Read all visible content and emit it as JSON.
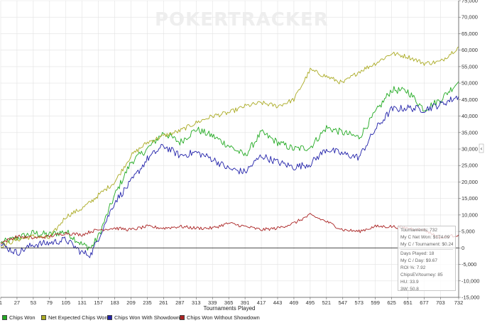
{
  "watermark": "POKERTRACKER",
  "chart_data": {
    "type": "line",
    "xlabel": "Tournaments Played",
    "ylabel": "",
    "xlim": [
      1,
      732
    ],
    "ylim": [
      -15000,
      75000
    ],
    "x_ticks": [
      "1",
      "27",
      "53",
      "79",
      "105",
      "131",
      "157",
      "183",
      "209",
      "235",
      "261",
      "287",
      "313",
      "339",
      "365",
      "391",
      "417",
      "443",
      "469",
      "495",
      "521",
      "547",
      "573",
      "599",
      "625",
      "651",
      "677",
      "703",
      "732"
    ],
    "y_ticks": [
      "75,000",
      "70,000",
      "65,000",
      "60,000",
      "55,000",
      "50,000",
      "45,000",
      "40,000",
      "35,000",
      "30,000",
      "25,000",
      "20,000",
      "15,000",
      "10,000",
      "5,000",
      "0",
      "-5,000",
      "-10,000",
      "-15,000"
    ],
    "grid": true,
    "legend_position": "bottom",
    "x": [
      1,
      27,
      53,
      79,
      105,
      131,
      145,
      157,
      183,
      209,
      235,
      261,
      287,
      313,
      339,
      365,
      391,
      417,
      443,
      469,
      495,
      521,
      547,
      573,
      599,
      625,
      651,
      677,
      703,
      732
    ],
    "series": [
      {
        "name": "Chips Won",
        "color": "#22aa22",
        "values": [
          1500,
          3000,
          4500,
          4000,
          5000,
          1000,
          0,
          3500,
          16000,
          26000,
          30000,
          35000,
          32000,
          36000,
          34000,
          31000,
          28000,
          35000,
          32000,
          30000,
          30500,
          36500,
          35000,
          33500,
          41000,
          48000,
          47500,
          42000,
          45000,
          50500
        ]
      },
      {
        "name": "Net Expected Chips Won",
        "color": "#aaaa22",
        "values": [
          500,
          2500,
          3500,
          3000,
          9500,
          12000,
          14000,
          16000,
          20000,
          28000,
          32000,
          34000,
          35500,
          38000,
          40000,
          41000,
          43000,
          44000,
          43000,
          45000,
          54000,
          52000,
          50000,
          53500,
          56000,
          59000,
          58000,
          56000,
          56500,
          61000
        ]
      },
      {
        "name": "Chips Won With Showdown",
        "color": "#2222aa",
        "values": [
          1000,
          -1500,
          1000,
          1500,
          2500,
          -1500,
          -2000,
          3000,
          14000,
          20000,
          27000,
          31000,
          28000,
          29000,
          27000,
          24000,
          23000,
          28000,
          26000,
          24500,
          25500,
          30000,
          28500,
          27500,
          36000,
          42000,
          42500,
          42000,
          43500,
          46000
        ]
      },
      {
        "name": "Chips Won Without Showdown",
        "color": "#aa2222",
        "values": [
          1500,
          3500,
          3000,
          3500,
          4500,
          4000,
          5000,
          5500,
          6000,
          5500,
          6500,
          6000,
          6500,
          6000,
          6000,
          7500,
          6500,
          5500,
          6000,
          7500,
          10000,
          8000,
          5500,
          5000,
          6500,
          6500,
          6000,
          5500,
          3000,
          4000
        ]
      }
    ]
  },
  "stats": [
    {
      "label": "Tournaments: 732"
    },
    {
      "label": "My C Net Won: $174.09"
    },
    {
      "label": "My C / Tournament: $0.24"
    },
    {
      "label": "Days Played: 18"
    },
    {
      "label": "My C / Day: $9.67"
    },
    {
      "label": "ROI %: 7.92"
    },
    {
      "label": "ChipsEV/tourney: 85"
    },
    {
      "label": "HU: 33.9"
    },
    {
      "label": "3W: 50.8"
    }
  ]
}
